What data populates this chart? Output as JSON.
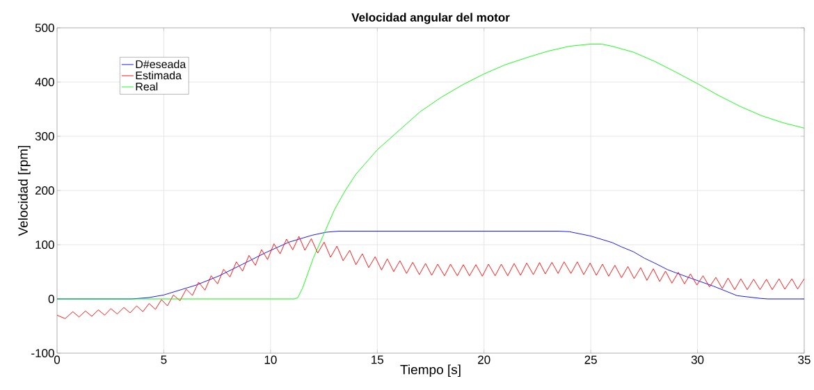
{
  "chart_data": {
    "type": "line",
    "title": "Velocidad angular del motor",
    "xlabel": "Tiempo [s]",
    "ylabel": "Velocidad [rpm]",
    "xlim": [
      0,
      35
    ],
    "ylim": [
      -100,
      500
    ],
    "xticks": [
      0,
      5,
      10,
      15,
      20,
      25,
      30,
      35
    ],
    "yticks": [
      -100,
      0,
      100,
      200,
      300,
      400,
      500
    ],
    "grid": true,
    "legend": "top left",
    "marker": "none",
    "line_style": "solid",
    "series": [
      {
        "name": "D#eseada",
        "color": "#0000ff",
        "x": [
          0,
          3.5,
          4.3,
          5,
          6.52,
          7.6,
          8.69,
          9.78,
          10.86,
          11.95,
          12.6,
          13.2,
          23.5,
          24,
          25,
          26,
          26.44,
          27,
          27.52,
          28,
          28.6,
          29,
          29.7,
          30.75,
          31.86,
          32.95,
          33.3,
          35
        ],
        "values": [
          0,
          0,
          2.5,
          7.3,
          25.6,
          42.7,
          64,
          85.5,
          104.7,
          117.5,
          123,
          125,
          125,
          124,
          116,
          104,
          96,
          87,
          75,
          66,
          54,
          48,
          38,
          23.5,
          6,
          1,
          0,
          0
        ]
      },
      {
        "name": "Estimada",
        "color": "#ff0000",
        "x": [
          0,
          0.38,
          0.74,
          1.03,
          1.33,
          1.63,
          1.93,
          2.23,
          2.52,
          2.82,
          3.13,
          3.42,
          3.73,
          4.02,
          4.31,
          4.61,
          4.89,
          5.17,
          5.45,
          5.76,
          6.05,
          6.34,
          6.63,
          6.93,
          7.22,
          7.52,
          7.8,
          8.1,
          8.4,
          8.69,
          8.99,
          9.29,
          9.58,
          9.86,
          10.16,
          10.45,
          10.75,
          11.04,
          11.33,
          11.61,
          11.91,
          12.21,
          12.51,
          12.81,
          13.11,
          13.4,
          13.71,
          14.0,
          14.3,
          14.6,
          14.9,
          15.2,
          15.47,
          15.77,
          16.06,
          16.37,
          16.66,
          16.97,
          17.26,
          17.55,
          17.83,
          18.15,
          18.43,
          18.75,
          19.03,
          19.32,
          19.62,
          19.92,
          20.21,
          20.52,
          20.81,
          21.11,
          21.41,
          21.71,
          22.0,
          22.31,
          22.6,
          22.87,
          23.18,
          23.47,
          23.75,
          24.07,
          24.37,
          24.67,
          24.97,
          25.26,
          25.55,
          25.84,
          26.13,
          26.44,
          26.74,
          27.03,
          27.34,
          27.63,
          27.93,
          28.23,
          28.5,
          28.8,
          29.1,
          29.39,
          29.67,
          29.97,
          30.26,
          30.56,
          30.86,
          31.16,
          31.43,
          31.74,
          32.03,
          32.33,
          32.63,
          32.93,
          33.23,
          33.5,
          33.82,
          34.09,
          34.42,
          34.69,
          35
        ],
        "values": [
          -30,
          -36.3,
          -23.5,
          -33.3,
          -22.2,
          -32.1,
          -20.1,
          -29.9,
          -17.9,
          -27.8,
          -15.8,
          -25.6,
          -12.8,
          -23.5,
          -8.5,
          -19.2,
          -1.3,
          -12.8,
          7.3,
          -3.4,
          17.9,
          6.4,
          30.8,
          16.2,
          42.7,
          27.8,
          54.7,
          40.6,
          68.4,
          51.3,
          80.3,
          62.0,
          91.0,
          72.6,
          101.7,
          83.3,
          110.3,
          90.6,
          115.4,
          89.7,
          111.1,
          84.6,
          104.7,
          76.9,
          97.4,
          70.5,
          89.7,
          63.2,
          83.3,
          57.7,
          77.8,
          53.4,
          73.9,
          50.4,
          70.5,
          47.0,
          67.5,
          44.9,
          65.4,
          43.6,
          64.1,
          42.7,
          64.1,
          42.7,
          63.2,
          42.7,
          63.2,
          41.9,
          64.1,
          42.7,
          64.1,
          42.7,
          65.4,
          43.6,
          66.2,
          44.9,
          67.1,
          46.2,
          67.5,
          47.0,
          68.4,
          47.0,
          68.4,
          44.9,
          66.2,
          43.6,
          64.1,
          41.9,
          62.0,
          39.3,
          59.8,
          37.6,
          57.7,
          34.2,
          55.6,
          32.1,
          51.3,
          29.1,
          49.1,
          27.8,
          46.2,
          25.6,
          42.7,
          22.2,
          39.7,
          19.2,
          38.5,
          17.1,
          37.2,
          17.1,
          36.3,
          17.1,
          36.3,
          17.1,
          37.2,
          17.9,
          37.2,
          18.3,
          37.2
        ]
      },
      {
        "name": "Real",
        "color": "#00ff00",
        "x": [
          0,
          11.1,
          11.27,
          11.5,
          12,
          12.5,
          13,
          13.5,
          14,
          15,
          16,
          17,
          18,
          19,
          20,
          21,
          22,
          23,
          24,
          25,
          25.5,
          26,
          27,
          28,
          29,
          30,
          31,
          32,
          33,
          34,
          35
        ],
        "values": [
          0,
          0,
          2,
          20,
          75,
          120,
          165,
          200,
          230,
          275,
          310,
          345,
          372,
          395,
          415,
          432,
          445,
          457,
          466,
          470,
          470,
          466,
          455,
          438,
          418,
          397,
          375,
          355,
          338,
          325,
          315
        ]
      }
    ]
  }
}
